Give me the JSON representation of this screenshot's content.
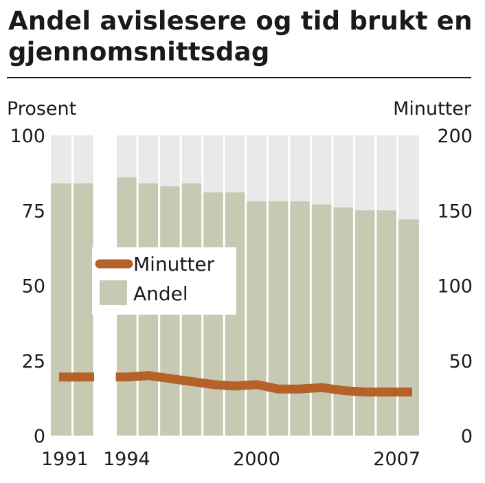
{
  "title": "Andel avislesere og tid brukt en gjennomsnittsdag",
  "chart_data": {
    "type": "bar",
    "ylabel_left": "Prosent",
    "ylabel_right": "Minutter",
    "y_left_lim": [
      0,
      100
    ],
    "y_right_lim": [
      0,
      200
    ],
    "y_left_ticks": [
      "100",
      "75",
      "50",
      "25",
      "0"
    ],
    "y_right_ticks": [
      "200",
      "150",
      "100",
      "50",
      "0"
    ],
    "x_tick_labels": [
      "1991",
      "1994",
      "2000",
      "2007"
    ],
    "years": [
      1991,
      1992,
      1993,
      1994,
      1995,
      1996,
      1997,
      1998,
      1999,
      2000,
      2001,
      2002,
      2003,
      2004,
      2005,
      2006,
      2007
    ],
    "series": [
      {
        "name": "Andel",
        "axis": "left",
        "type": "bar",
        "color": "#c8c9b3",
        "values": [
          84,
          84,
          null,
          86,
          84,
          83,
          84,
          81,
          81,
          78,
          78,
          78,
          77,
          76,
          75,
          75,
          72
        ]
      },
      {
        "name": "Minutter",
        "axis": "right",
        "type": "line",
        "color": "#b5612a",
        "values": [
          39,
          39,
          null,
          39,
          40,
          38,
          36,
          34,
          33,
          34,
          31,
          31,
          32,
          30,
          29,
          29,
          29
        ]
      }
    ],
    "plot_background": "#e9e9e9",
    "grid": "vertical",
    "legend_position": "middle-left"
  }
}
